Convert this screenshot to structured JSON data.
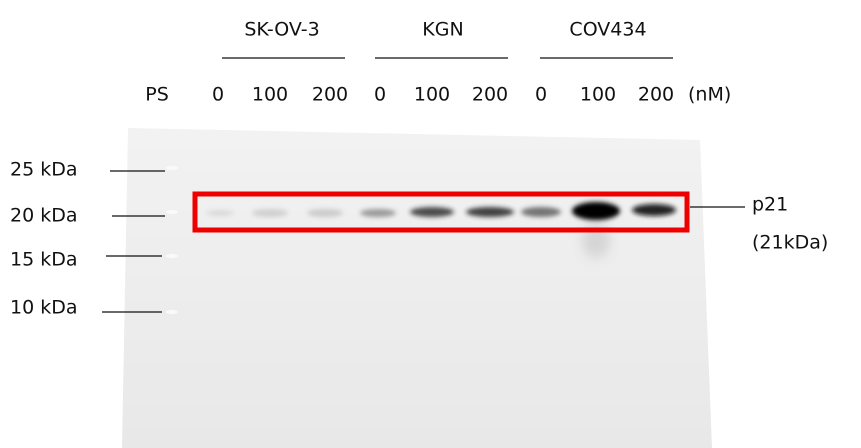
{
  "groups": [
    {
      "name": "SK-OV-3",
      "concentrations": [
        "0",
        "100",
        "200"
      ]
    },
    {
      "name": "KGN",
      "concentrations": [
        "0",
        "100",
        "200"
      ]
    },
    {
      "name": "COV434",
      "concentrations": [
        "0",
        "100",
        "200"
      ]
    }
  ],
  "ladder_label": "PS",
  "unit": "(nM)",
  "markers": [
    "25 kDa",
    "20 kDa",
    "15 kDa",
    "10 kDa"
  ],
  "band": {
    "name": "p21",
    "size": "(21kDa)"
  }
}
